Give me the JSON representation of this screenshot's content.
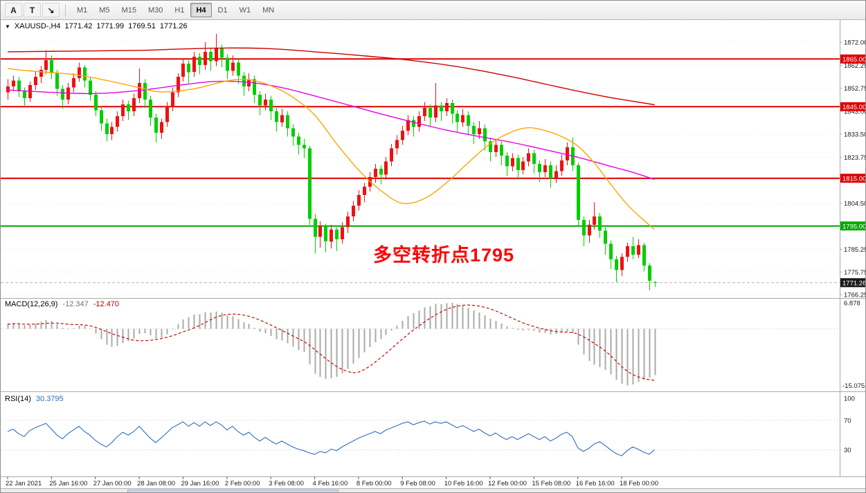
{
  "toolbar": {
    "tools": [
      {
        "name": "annotation-tool",
        "glyph": "A"
      },
      {
        "name": "text-tool",
        "glyph": "T"
      },
      {
        "name": "crosshair-tool",
        "glyph": "↘"
      }
    ],
    "timeframes": [
      "M1",
      "M5",
      "M15",
      "M30",
      "H1",
      "H4",
      "D1",
      "W1",
      "MN"
    ],
    "active_timeframe": "H4"
  },
  "header": {
    "marker": "▼",
    "symbol_period": "XAUUSD-,H4",
    "open": "1771.42",
    "high": "1771.99",
    "low": "1769.51",
    "close": "1771.26"
  },
  "annotation": {
    "text": "多空转折点1795",
    "color": "#ff0000"
  },
  "panels": {
    "macd": {
      "label": "MACD(12,26,9)",
      "main_value": "-12.347",
      "signal_value": "-12.470",
      "scale_max": "6.878",
      "scale_min": "-15.075"
    },
    "rsi": {
      "label": "RSI(14)",
      "value": "30.3795",
      "levels": [
        100,
        70,
        30
      ]
    }
  },
  "colors": {
    "bull": "#ee1111",
    "bear": "#00ce00",
    "macd_histogram": "#aaaaaa",
    "macd_signal": "#cc0000",
    "rsi_line": "#2f6db8",
    "current_badge": "#1a1a1a"
  },
  "chart_data": {
    "type": "candlestick",
    "symbol": "XAUUSD-",
    "period": "H4",
    "title": "XAUUSD-,H4 1771.42 1771.99 1769.51 1771.26",
    "price_ticks": [
      1872.0,
      1862.25,
      1852.75,
      1843.0,
      1833.5,
      1823.75,
      1814.25,
      1804.5,
      1794.75,
      1785.25,
      1775.75,
      1766.25
    ],
    "levels": [
      {
        "price": 1865.0,
        "label": "1865.00",
        "color": "#dd0000"
      },
      {
        "price": 1845.0,
        "label": "1845.00",
        "color": "#dd0000"
      },
      {
        "price": 1815.0,
        "label": "1815.00",
        "color": "#dd0000"
      },
      {
        "price": 1795.0,
        "label": "1795.00",
        "color": "#00aa00"
      }
    ],
    "current_price": {
      "value": 1771.26,
      "label": "1771.26"
    },
    "time_labels": [
      {
        "bar": 0,
        "text": "22 Jan 2021"
      },
      {
        "bar": 8,
        "text": "25 Jan 16:00"
      },
      {
        "bar": 16,
        "text": "27 Jan 00:00"
      },
      {
        "bar": 24,
        "text": "28 Jan 08:00"
      },
      {
        "bar": 32,
        "text": "29 Jan 16:00"
      },
      {
        "bar": 40,
        "text": "2 Feb 00:00"
      },
      {
        "bar": 48,
        "text": "3 Feb 08:00"
      },
      {
        "bar": 56,
        "text": "4 Feb 16:00"
      },
      {
        "bar": 64,
        "text": "8 Feb 00:00"
      },
      {
        "bar": 72,
        "text": "9 Feb 08:00"
      },
      {
        "bar": 80,
        "text": "10 Feb 16:00"
      },
      {
        "bar": 88,
        "text": "12 Feb 00:00"
      },
      {
        "bar": 96,
        "text": "15 Feb 08:00"
      },
      {
        "bar": 104,
        "text": "16 Feb 16:00"
      },
      {
        "bar": 112,
        "text": "18 Feb 00:00"
      }
    ],
    "candles": [
      [
        1851,
        1856.5,
        1848,
        1853.5
      ],
      [
        1853.5,
        1858,
        1851.5,
        1856
      ],
      [
        1856,
        1857.5,
        1849,
        1851.5
      ],
      [
        1851.5,
        1853,
        1845.5,
        1848.5
      ],
      [
        1848.5,
        1855.5,
        1847,
        1854
      ],
      [
        1854,
        1859.5,
        1852,
        1857.5
      ],
      [
        1857.5,
        1862,
        1855,
        1860.5
      ],
      [
        1860.5,
        1868.5,
        1858.5,
        1864.5
      ],
      [
        1864.5,
        1866.5,
        1856.5,
        1859
      ],
      [
        1859,
        1860.5,
        1849.5,
        1852.5
      ],
      [
        1852.5,
        1854,
        1844,
        1848
      ],
      [
        1848,
        1855,
        1846,
        1853
      ],
      [
        1853,
        1859,
        1851,
        1857
      ],
      [
        1857,
        1863.5,
        1855.5,
        1861.5
      ],
      [
        1861.5,
        1862.5,
        1853,
        1856
      ],
      [
        1856,
        1857.5,
        1847.5,
        1850
      ],
      [
        1850,
        1851.5,
        1841,
        1843.5
      ],
      [
        1843.5,
        1845,
        1835,
        1838
      ],
      [
        1838,
        1840,
        1830.5,
        1833.5
      ],
      [
        1833.5,
        1838.5,
        1831,
        1836.5
      ],
      [
        1836.5,
        1843,
        1834.5,
        1841
      ],
      [
        1841,
        1848,
        1839,
        1846
      ],
      [
        1846,
        1847.5,
        1839.5,
        1843
      ],
      [
        1843,
        1850.5,
        1841,
        1848.5
      ],
      [
        1848.5,
        1861,
        1846.5,
        1855
      ],
      [
        1855,
        1856.5,
        1844.5,
        1848
      ],
      [
        1848,
        1849.5,
        1837,
        1840.5
      ],
      [
        1840.5,
        1842,
        1830,
        1834
      ],
      [
        1834,
        1840,
        1831.5,
        1838.5
      ],
      [
        1838.5,
        1847,
        1836.5,
        1845
      ],
      [
        1845,
        1853,
        1843,
        1851
      ],
      [
        1851,
        1859,
        1849,
        1857.5
      ],
      [
        1857.5,
        1865,
        1855.5,
        1863
      ],
      [
        1863,
        1864.5,
        1855,
        1859.5
      ],
      [
        1859.5,
        1868,
        1857.5,
        1866
      ],
      [
        1866,
        1867.5,
        1858.5,
        1862.5
      ],
      [
        1862.5,
        1872,
        1860.5,
        1868
      ],
      [
        1868,
        1869.5,
        1860,
        1864
      ],
      [
        1864,
        1875.5,
        1862,
        1869.5
      ],
      [
        1869.5,
        1871,
        1861.5,
        1865.5
      ],
      [
        1865.5,
        1867,
        1856.5,
        1860
      ],
      [
        1860,
        1866.5,
        1858,
        1863.5
      ],
      [
        1863.5,
        1865,
        1854.5,
        1858
      ],
      [
        1858,
        1859.5,
        1849.5,
        1853.5
      ],
      [
        1853.5,
        1859,
        1851.5,
        1856.5
      ],
      [
        1856.5,
        1858,
        1846.5,
        1850
      ],
      [
        1850,
        1851.5,
        1841.5,
        1845.5
      ],
      [
        1845.5,
        1850.5,
        1843.5,
        1848
      ],
      [
        1848,
        1849.5,
        1839.5,
        1843
      ],
      [
        1843,
        1844.5,
        1834.5,
        1838.5
      ],
      [
        1838.5,
        1844,
        1836.5,
        1841.5
      ],
      [
        1841.5,
        1843,
        1832.5,
        1836
      ],
      [
        1836,
        1837.5,
        1828.5,
        1832.5
      ],
      [
        1832.5,
        1834,
        1825,
        1829
      ],
      [
        1829,
        1831.5,
        1823.5,
        1827.5
      ],
      [
        1827.5,
        1828.5,
        1795.5,
        1798
      ],
      [
        1798,
        1800,
        1783.5,
        1790.5
      ],
      [
        1790.5,
        1797,
        1786,
        1795
      ],
      [
        1795,
        1796,
        1784,
        1788.5
      ],
      [
        1788.5,
        1795.5,
        1785.5,
        1793.5
      ],
      [
        1793.5,
        1794.5,
        1784.5,
        1789.5
      ],
      [
        1789.5,
        1796.5,
        1787.5,
        1794.5
      ],
      [
        1794.5,
        1801,
        1792,
        1799
      ],
      [
        1799,
        1805.5,
        1797,
        1803.5
      ],
      [
        1803.5,
        1810,
        1801.5,
        1808
      ],
      [
        1808,
        1813,
        1805,
        1811.5
      ],
      [
        1811.5,
        1817.5,
        1809.5,
        1815.5
      ],
      [
        1815.5,
        1821,
        1813,
        1819
      ],
      [
        1819,
        1820.5,
        1812.5,
        1816.5
      ],
      [
        1816.5,
        1824,
        1814.5,
        1822
      ],
      [
        1822,
        1829.5,
        1820,
        1827.5
      ],
      [
        1827.5,
        1833,
        1825,
        1831
      ],
      [
        1831,
        1837,
        1829,
        1835
      ],
      [
        1835,
        1841.5,
        1833,
        1839.5
      ],
      [
        1839.5,
        1841,
        1832.5,
        1836.5
      ],
      [
        1836.5,
        1843,
        1834.5,
        1841
      ],
      [
        1841,
        1847,
        1839,
        1844.5
      ],
      [
        1844.5,
        1846,
        1836.5,
        1840.5
      ],
      [
        1840.5,
        1855,
        1838.5,
        1845.5
      ],
      [
        1845.5,
        1847,
        1839,
        1843
      ],
      [
        1843,
        1848.5,
        1841,
        1846.5
      ],
      [
        1846.5,
        1848,
        1838,
        1842
      ],
      [
        1842,
        1843.5,
        1834.5,
        1838.5
      ],
      [
        1838.5,
        1844,
        1836.5,
        1841.5
      ],
      [
        1841.5,
        1843,
        1833,
        1837
      ],
      [
        1837,
        1838.5,
        1829.5,
        1833.5
      ],
      [
        1833.5,
        1839,
        1831.5,
        1836
      ],
      [
        1836,
        1837.5,
        1826.5,
        1830.5
      ],
      [
        1830.5,
        1832,
        1822,
        1826
      ],
      [
        1826,
        1831.5,
        1824,
        1829
      ],
      [
        1829,
        1830.5,
        1820.5,
        1824.5
      ],
      [
        1824.5,
        1826,
        1816,
        1820
      ],
      [
        1820,
        1825.5,
        1818,
        1823.5
      ],
      [
        1823.5,
        1825,
        1814.5,
        1818.5
      ],
      [
        1818.5,
        1824,
        1816.5,
        1822
      ],
      [
        1822,
        1827.5,
        1820,
        1825.5
      ],
      [
        1825.5,
        1827,
        1817,
        1821
      ],
      [
        1821,
        1822.5,
        1813.5,
        1817.5
      ],
      [
        1817.5,
        1823,
        1815.5,
        1820.5
      ],
      [
        1820.5,
        1822,
        1811,
        1815
      ],
      [
        1815,
        1820.5,
        1813,
        1818
      ],
      [
        1818,
        1825,
        1816,
        1822.5
      ],
      [
        1822.5,
        1830,
        1820.5,
        1828
      ],
      [
        1828,
        1832,
        1818,
        1820.5
      ],
      [
        1820.5,
        1821.5,
        1794.5,
        1797.5
      ],
      [
        1797.5,
        1799,
        1786.5,
        1791
      ],
      [
        1791,
        1797.5,
        1788,
        1795.5
      ],
      [
        1795.5,
        1805,
        1793.5,
        1799
      ],
      [
        1799,
        1800.5,
        1790,
        1793
      ],
      [
        1793,
        1794.5,
        1783,
        1787.5
      ],
      [
        1787.5,
        1789,
        1777,
        1781
      ],
      [
        1781,
        1782.5,
        1771.5,
        1776.5
      ],
      [
        1776.5,
        1783.5,
        1774,
        1782
      ],
      [
        1782,
        1788,
        1780,
        1786.5
      ],
      [
        1786.5,
        1790.5,
        1781,
        1783
      ],
      [
        1783,
        1789.5,
        1781.5,
        1787
      ],
      [
        1787,
        1788,
        1776,
        1778.5
      ],
      [
        1778.5,
        1779.5,
        1768,
        1772
      ],
      [
        1771.42,
        1771.99,
        1769.51,
        1771.26
      ]
    ],
    "ma_lines": [
      {
        "name": "ma-slow-red",
        "color": "#cc0000",
        "points": [
          [
            0,
            1868
          ],
          [
            12,
            1868.3
          ],
          [
            24,
            1868.6
          ],
          [
            32,
            1869.2
          ],
          [
            40,
            1869.6
          ],
          [
            48,
            1869.3
          ],
          [
            56,
            1868
          ],
          [
            64,
            1866.5
          ],
          [
            72,
            1864.8
          ],
          [
            80,
            1862.5
          ],
          [
            86,
            1860.2
          ],
          [
            92,
            1857.5
          ],
          [
            98,
            1854.5
          ],
          [
            104,
            1851.5
          ],
          [
            110,
            1848.8
          ],
          [
            118,
            1845.8
          ]
        ]
      },
      {
        "name": "ma-medium-magenta",
        "color": "#e400e4",
        "points": [
          [
            0,
            1852
          ],
          [
            8,
            1851
          ],
          [
            16,
            1850.5
          ],
          [
            24,
            1851.8
          ],
          [
            32,
            1854.2
          ],
          [
            38,
            1855.6
          ],
          [
            44,
            1855.2
          ],
          [
            50,
            1853
          ],
          [
            56,
            1849.5
          ],
          [
            62,
            1845.8
          ],
          [
            68,
            1842
          ],
          [
            74,
            1838.5
          ],
          [
            80,
            1835.2
          ],
          [
            86,
            1832.5
          ],
          [
            92,
            1830
          ],
          [
            98,
            1827
          ],
          [
            104,
            1823.8
          ],
          [
            110,
            1820
          ],
          [
            114,
            1817.5
          ],
          [
            118,
            1814.5
          ]
        ]
      },
      {
        "name": "ma-fast-orange",
        "color": "#ffa500",
        "points": [
          [
            0,
            1861
          ],
          [
            4,
            1860
          ],
          [
            12,
            1858.5
          ],
          [
            18,
            1856
          ],
          [
            24,
            1853
          ],
          [
            28,
            1851.2
          ],
          [
            34,
            1852.5
          ],
          [
            40,
            1855.8
          ],
          [
            44,
            1856.3
          ],
          [
            48,
            1853.8
          ],
          [
            52,
            1849
          ],
          [
            56,
            1841.5
          ],
          [
            60,
            1829.5
          ],
          [
            64,
            1818.5
          ],
          [
            68,
            1810
          ],
          [
            72,
            1804.5
          ],
          [
            76,
            1806.5
          ],
          [
            80,
            1813
          ],
          [
            84,
            1821.5
          ],
          [
            88,
            1829.5
          ],
          [
            92,
            1834.5
          ],
          [
            95,
            1836.2
          ],
          [
            98,
            1835
          ],
          [
            101,
            1832.5
          ],
          [
            104,
            1828.5
          ],
          [
            107,
            1821.5
          ],
          [
            110,
            1812.5
          ],
          [
            113,
            1804
          ],
          [
            116,
            1797.5
          ],
          [
            118,
            1793.5
          ]
        ]
      }
    ],
    "macd": {
      "histogram": [
        1.2,
        1.5,
        1.3,
        0.9,
        1.1,
        1.4,
        1.8,
        2.3,
        2.0,
        1.2,
        0.3,
        -0.2,
        0.2,
        0.8,
        0.7,
        -0.1,
        -1.3,
        -2.8,
        -4.2,
        -4.8,
        -4.6,
        -3.8,
        -3.3,
        -2.6,
        -1.4,
        -1.2,
        -1.8,
        -2.6,
        -2.4,
        -1.5,
        -0.2,
        1.2,
        2.5,
        3.0,
        3.8,
        3.9,
        4.4,
        4.3,
        4.6,
        4.3,
        3.6,
        3.3,
        2.6,
        1.7,
        1.3,
        0.3,
        -0.8,
        -1.2,
        -1.9,
        -2.8,
        -3.1,
        -3.9,
        -4.8,
        -5.6,
        -6.2,
        -9.5,
        -12.0,
        -12.8,
        -13.4,
        -13.2,
        -12.8,
        -11.9,
        -10.7,
        -9.3,
        -7.8,
        -6.3,
        -4.9,
        -3.6,
        -2.8,
        -1.7,
        -0.5,
        0.8,
        2.1,
        3.4,
        4.1,
        4.9,
        5.7,
        6.0,
        6.6,
        6.5,
        6.8,
        6.878,
        6.6,
        6.2,
        5.6,
        4.9,
        4.3,
        3.6,
        2.7,
        2.1,
        1.4,
        0.6,
        0.2,
        -0.3,
        -0.5,
        -0.4,
        -0.6,
        -1.0,
        -1.1,
        -1.5,
        -1.4,
        -1.0,
        -0.7,
        -1.2,
        -4.2,
        -6.8,
        -8.6,
        -9.6,
        -10.2,
        -11.0,
        -12.2,
        -13.6,
        -14.6,
        -15.075,
        -14.8,
        -14.2,
        -13.6,
        -13.0,
        -12.347
      ]
    },
    "rsi": {
      "values": [
        55,
        58,
        52,
        48,
        56,
        60,
        63,
        66,
        58,
        50,
        45,
        52,
        57,
        62,
        55,
        50,
        43,
        38,
        34,
        40,
        48,
        54,
        50,
        55,
        62,
        54,
        46,
        40,
        46,
        53,
        60,
        64,
        68,
        62,
        67,
        62,
        68,
        63,
        68,
        64,
        57,
        62,
        55,
        50,
        54,
        47,
        42,
        47,
        42,
        38,
        42,
        38,
        34,
        31,
        29,
        26,
        24,
        28,
        26,
        31,
        29,
        34,
        38,
        42,
        46,
        49,
        52,
        55,
        52,
        57,
        60,
        63,
        66,
        68,
        64,
        67,
        69,
        65,
        68,
        66,
        68,
        64,
        60,
        63,
        59,
        55,
        58,
        53,
        49,
        53,
        48,
        44,
        48,
        44,
        48,
        52,
        48,
        44,
        48,
        42,
        46,
        51,
        54,
        48,
        33,
        28,
        32,
        38,
        41,
        36,
        30,
        25,
        22,
        29,
        34,
        31,
        27,
        24,
        30.38
      ]
    }
  }
}
